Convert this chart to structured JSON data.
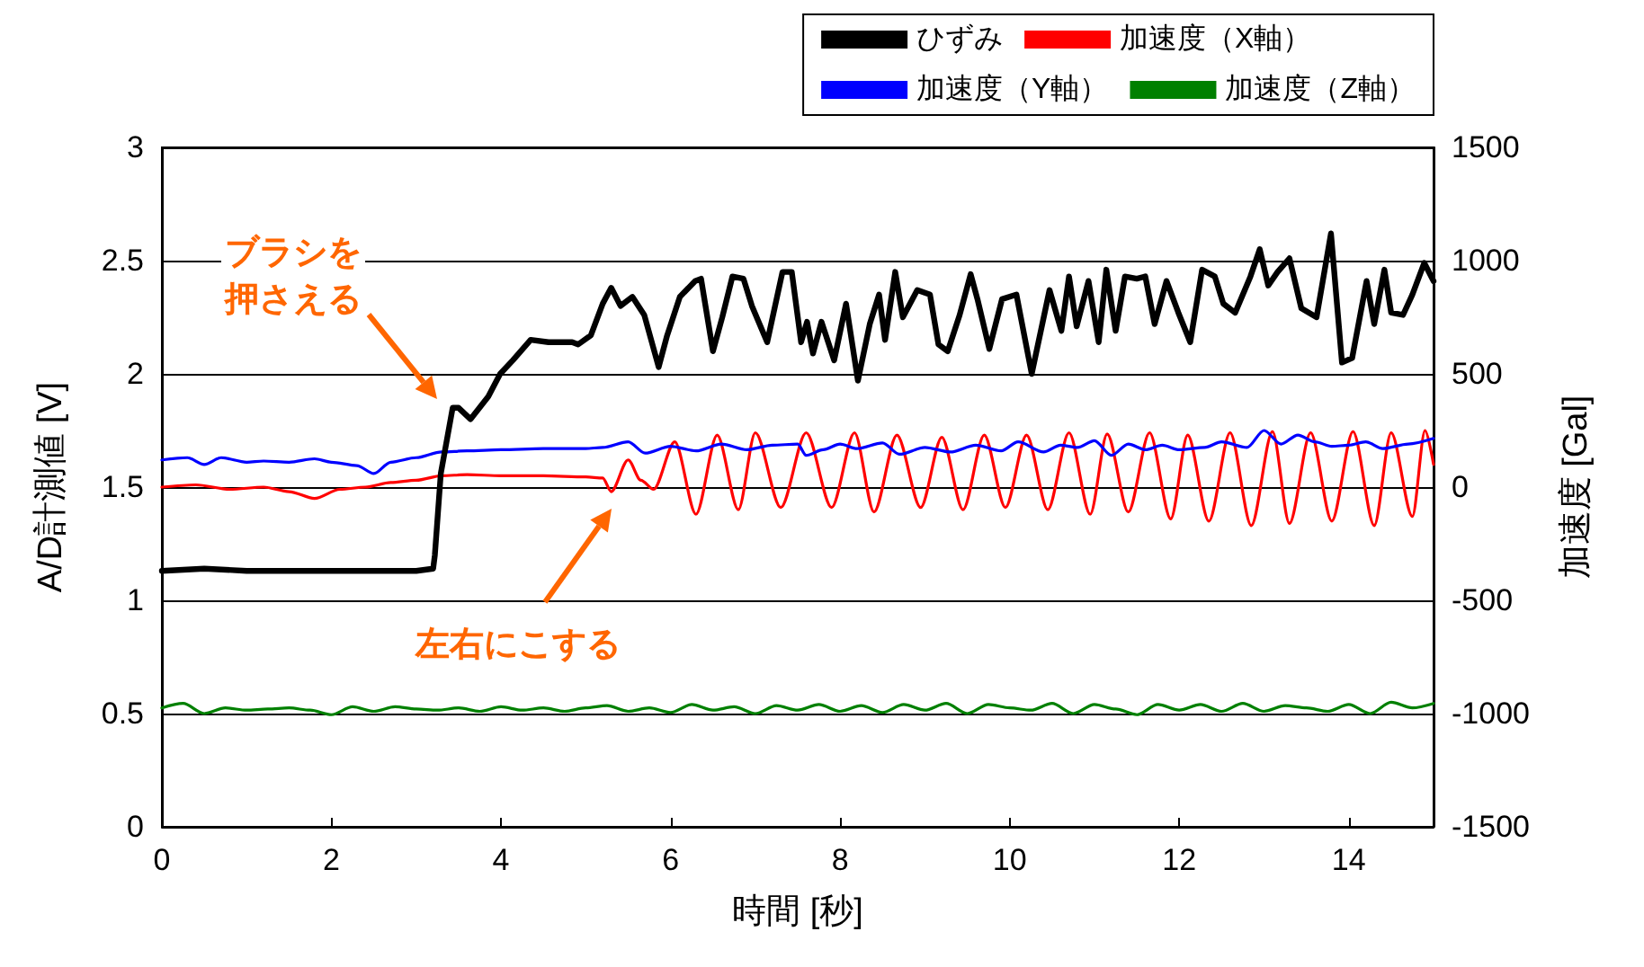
{
  "chart_data": {
    "type": "line",
    "xlabel": "時間 [秒]",
    "ylabel": "A/D計測値 [V]",
    "y2label": "加速度 [Gal]",
    "xlim": [
      0,
      15
    ],
    "xticks": [
      0,
      2,
      4,
      6,
      8,
      10,
      12,
      14
    ],
    "ylim": [
      0,
      3
    ],
    "yticks": [
      0,
      0.5,
      1,
      1.5,
      2,
      2.5,
      3
    ],
    "y2lim": [
      -1500,
      1500
    ],
    "y2ticks": [
      -1500,
      -1000,
      -500,
      0,
      500,
      1000,
      1500
    ],
    "grid": "y",
    "legend": "top right",
    "marker": "none",
    "line_style": "solid",
    "annotations": [
      "ブラシを押さえる",
      "左右にこする"
    ],
    "series": [
      {
        "name": "ひずみ",
        "color": "#000000",
        "x": [
          0,
          0.5,
          1,
          1.5,
          2,
          2.5,
          3,
          3.2,
          3.22,
          3.29,
          3.43,
          3.5,
          3.64,
          3.85,
          3.99,
          4.14,
          4.35,
          4.56,
          4.84,
          4.91,
          5.06,
          5.2,
          5.3,
          5.41,
          5.55,
          5.69,
          5.86,
          5.96,
          6.11,
          6.29,
          6.36,
          6.5,
          6.61,
          6.73,
          6.86,
          6.96,
          7.14,
          7.32,
          7.43,
          7.54,
          7.61,
          7.68,
          7.78,
          7.93,
          8.07,
          8.21,
          8.35,
          8.46,
          8.53,
          8.65,
          8.74,
          8.91,
          9.06,
          9.16,
          9.27,
          9.41,
          9.54,
          9.62,
          9.76,
          9.91,
          10.08,
          10.26,
          10.47,
          10.61,
          10.7,
          10.79,
          10.93,
          11.05,
          11.14,
          11.25,
          11.36,
          11.5,
          11.6,
          11.71,
          11.85,
          11.99,
          12.13,
          12.27,
          12.42,
          12.52,
          12.66,
          12.84,
          12.95,
          13.05,
          13.16,
          13.3,
          13.44,
          13.62,
          13.79,
          13.92,
          14.04,
          14.21,
          14.3,
          14.42,
          14.5,
          14.64,
          14.75,
          14.89,
          15
        ],
        "values": [
          1.13,
          1.14,
          1.13,
          1.13,
          1.13,
          1.13,
          1.13,
          1.14,
          1.2,
          1.56,
          1.85,
          1.85,
          1.8,
          1.9,
          2.0,
          2.06,
          2.15,
          2.14,
          2.14,
          2.13,
          2.17,
          2.31,
          2.38,
          2.3,
          2.34,
          2.26,
          2.03,
          2.17,
          2.34,
          2.41,
          2.42,
          2.1,
          2.25,
          2.43,
          2.42,
          2.3,
          2.14,
          2.45,
          2.45,
          2.14,
          2.23,
          2.09,
          2.23,
          2.06,
          2.31,
          1.97,
          2.22,
          2.35,
          2.15,
          2.45,
          2.25,
          2.37,
          2.35,
          2.13,
          2.1,
          2.26,
          2.44,
          2.33,
          2.11,
          2.33,
          2.35,
          2.0,
          2.37,
          2.19,
          2.43,
          2.21,
          2.41,
          2.14,
          2.46,
          2.19,
          2.43,
          2.42,
          2.43,
          2.22,
          2.41,
          2.27,
          2.14,
          2.46,
          2.43,
          2.31,
          2.27,
          2.43,
          2.55,
          2.39,
          2.45,
          2.51,
          2.29,
          2.25,
          2.62,
          2.05,
          2.07,
          2.41,
          2.22,
          2.46,
          2.27,
          2.26,
          2.35,
          2.49,
          2.41
        ]
      },
      {
        "name": "加速度（X軸）",
        "color": "#ff0000",
        "axis": "y2",
        "x": [
          0,
          0.4,
          0.8,
          1.2,
          1.5,
          1.8,
          2.1,
          2.4,
          2.7,
          3.0,
          3.3,
          3.6,
          4.0,
          4.5,
          5.0,
          5.2,
          5.3,
          5.5,
          5.65,
          5.8,
          6.05,
          6.3,
          6.55,
          6.8,
          7.0,
          7.3,
          7.6,
          7.9,
          8.17,
          8.4,
          8.67,
          8.95,
          9.2,
          9.45,
          9.7,
          9.95,
          10.2,
          10.45,
          10.7,
          10.95,
          11.15,
          11.4,
          11.65,
          11.9,
          12.1,
          12.35,
          12.6,
          12.85,
          13.1,
          13.3,
          13.55,
          13.8,
          14.05,
          14.3,
          14.5,
          14.75,
          14.9,
          15
        ],
        "values": [
          0,
          10,
          -10,
          0,
          -20,
          -50,
          -10,
          0,
          20,
          30,
          50,
          55,
          50,
          50,
          45,
          40,
          -20,
          120,
          30,
          -10,
          200,
          -120,
          230,
          -100,
          240,
          -90,
          240,
          -90,
          240,
          -110,
          230,
          -90,
          220,
          -100,
          230,
          -90,
          230,
          -100,
          240,
          -120,
          235,
          -110,
          240,
          -140,
          230,
          -150,
          240,
          -170,
          245,
          -160,
          240,
          -150,
          245,
          -170,
          240,
          -130,
          250,
          100
        ]
      },
      {
        "name": "加速度（Y軸）",
        "color": "#0000ff",
        "axis": "y2",
        "x": [
          0,
          0.3,
          0.5,
          0.7,
          1.0,
          1.2,
          1.5,
          1.8,
          2.0,
          2.3,
          2.5,
          2.7,
          3.0,
          3.3,
          3.6,
          4.0,
          4.5,
          5.0,
          5.2,
          5.5,
          5.7,
          6.0,
          6.3,
          6.6,
          6.9,
          7.2,
          7.5,
          7.6,
          7.8,
          8.0,
          8.2,
          8.5,
          8.7,
          9.0,
          9.3,
          9.6,
          9.9,
          10.1,
          10.4,
          10.6,
          10.8,
          11.0,
          11.2,
          11.4,
          11.6,
          11.8,
          12.0,
          12.3,
          12.5,
          12.8,
          13.0,
          13.2,
          13.4,
          13.6,
          13.8,
          14.0,
          14.2,
          14.4,
          14.7,
          15
        ],
        "values": [
          120,
          130,
          100,
          130,
          110,
          115,
          110,
          125,
          110,
          95,
          60,
          110,
          130,
          155,
          160,
          165,
          170,
          170,
          175,
          200,
          150,
          180,
          160,
          190,
          165,
          185,
          190,
          140,
          165,
          190,
          170,
          195,
          145,
          175,
          155,
          185,
          160,
          200,
          155,
          185,
          175,
          205,
          140,
          190,
          165,
          185,
          165,
          175,
          200,
          175,
          250,
          190,
          230,
          200,
          180,
          185,
          200,
          170,
          190,
          215
        ]
      },
      {
        "name": "加速度（Z軸）",
        "color": "#008000",
        "axis": "y2",
        "x": [
          0,
          0.25,
          0.5,
          0.75,
          1,
          1.25,
          1.5,
          1.75,
          2,
          2.25,
          2.5,
          2.75,
          3,
          3.25,
          3.5,
          3.75,
          4,
          4.25,
          4.5,
          4.75,
          5,
          5.25,
          5.5,
          5.75,
          6,
          6.25,
          6.5,
          6.75,
          7,
          7.25,
          7.5,
          7.75,
          8,
          8.25,
          8.5,
          8.75,
          9,
          9.25,
          9.5,
          9.75,
          10,
          10.25,
          10.5,
          10.75,
          11,
          11.25,
          11.5,
          11.75,
          12,
          12.25,
          12.5,
          12.75,
          13,
          13.25,
          13.5,
          13.75,
          14,
          14.25,
          14.5,
          14.75,
          15
        ],
        "values": [
          -975,
          -955,
          -1000,
          -975,
          -985,
          -980,
          -975,
          -985,
          -1005,
          -970,
          -990,
          -970,
          -980,
          -985,
          -975,
          -990,
          -970,
          -985,
          -975,
          -990,
          -975,
          -965,
          -990,
          -975,
          -995,
          -960,
          -985,
          -970,
          -1000,
          -965,
          -985,
          -960,
          -990,
          -965,
          -995,
          -960,
          -985,
          -955,
          -1000,
          -960,
          -975,
          -985,
          -955,
          -1000,
          -960,
          -980,
          -1005,
          -960,
          -985,
          -960,
          -990,
          -955,
          -990,
          -965,
          -975,
          -990,
          -960,
          -1000,
          -950,
          -975,
          -955
        ]
      }
    ]
  }
}
